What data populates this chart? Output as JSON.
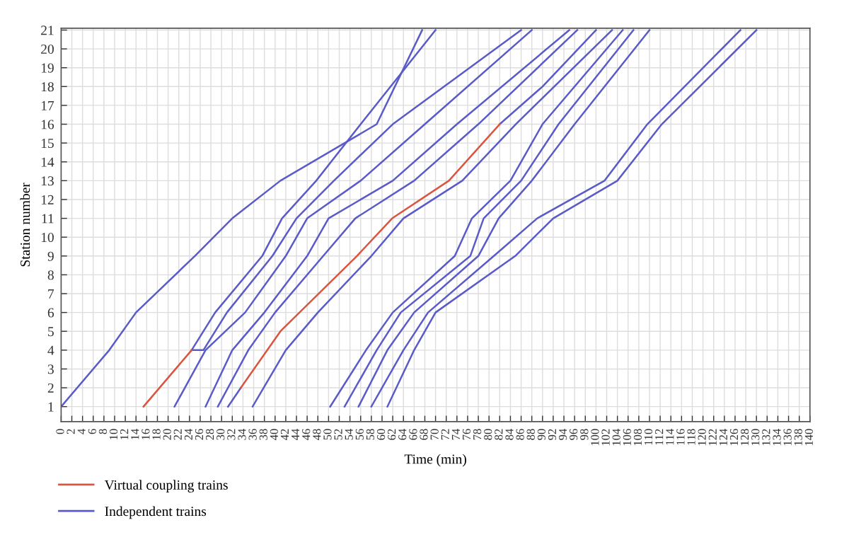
{
  "chart_data": {
    "type": "line",
    "xlabel": "Time (min)",
    "ylabel": "Station number",
    "xlim": [
      0,
      140
    ],
    "xticks": [
      0,
      2,
      4,
      6,
      8,
      10,
      12,
      14,
      16,
      18,
      20,
      22,
      24,
      26,
      28,
      30,
      32,
      34,
      36,
      38,
      40,
      42,
      44,
      46,
      48,
      50,
      52,
      54,
      56,
      58,
      60,
      62,
      64,
      66,
      68,
      70,
      72,
      74,
      76,
      78,
      80,
      82,
      84,
      86,
      88,
      90,
      92,
      94,
      96,
      98,
      100,
      102,
      104,
      106,
      108,
      110,
      112,
      114,
      116,
      118,
      120,
      122,
      124,
      126,
      128,
      130,
      132,
      134,
      136,
      138,
      140
    ],
    "ylim": [
      0.2,
      21.1
    ],
    "yticks": [
      1,
      2,
      3,
      4,
      5,
      6,
      7,
      8,
      9,
      10,
      11,
      12,
      13,
      14,
      15,
      16,
      17,
      18,
      19,
      20,
      21
    ],
    "grid": true,
    "legend": "bottom left",
    "marker": "none",
    "line_style": "solid",
    "series": [
      {
        "name": "Independent trains",
        "color": "#5a5ac8",
        "x": [
          0,
          9,
          14,
          25,
          32,
          41,
          59,
          67.5
        ],
        "values": [
          1,
          4,
          6,
          9,
          11,
          13,
          16,
          21
        ]
      },
      {
        "color": "#5a5ac8",
        "x": [
          24.4,
          28.8,
          37.6,
          41.3,
          47.7,
          56,
          70
        ],
        "values": [
          4,
          6,
          9,
          11,
          13,
          16,
          21
        ]
      },
      {
        "color": "#5a5ac8",
        "x": [
          24.4,
          26.6,
          31,
          39.5,
          44,
          51,
          62,
          86
        ],
        "values": [
          4,
          4,
          6,
          9,
          11,
          13,
          16,
          21
        ]
      },
      {
        "color": "#5a5ac8",
        "x": [
          21.2,
          27,
          34.4,
          42,
          46,
          56,
          68,
          88
        ],
        "values": [
          1,
          4,
          6,
          9,
          11,
          13,
          16,
          21
        ]
      },
      {
        "color": "#5a5ac8",
        "x": [
          27,
          32,
          38,
          46,
          50,
          62,
          74,
          95
        ],
        "values": [
          1,
          4,
          6,
          9,
          11,
          13,
          16,
          21
        ]
      },
      {
        "color": "#5a5ac8",
        "x": [
          29.3,
          35,
          40,
          49,
          55,
          66,
          78,
          96.5
        ],
        "values": [
          1,
          4,
          6,
          9,
          11,
          13,
          16,
          21
        ]
      },
      {
        "color": "#5a5ac8",
        "x": [
          31.2,
          33.6
        ],
        "values": [
          1,
          2
        ]
      },
      {
        "color": "#5a5ac8",
        "x": [
          82,
          90,
          100
        ],
        "values": [
          16,
          18,
          21
        ]
      },
      {
        "color": "#5a5ac8",
        "x": [
          35.8,
          42,
          48,
          58,
          64,
          75,
          85,
          103
        ],
        "values": [
          1,
          4,
          6,
          9,
          11,
          13,
          16,
          21
        ]
      },
      {
        "color": "#5a5ac8",
        "x": [
          50.3,
          57,
          62,
          73.6,
          76.8,
          84,
          90,
          105
        ],
        "values": [
          1,
          4,
          6,
          9,
          11,
          13,
          16,
          21
        ]
      },
      {
        "color": "#5a5ac8",
        "x": [
          53,
          59,
          63.5,
          76.5,
          79,
          86,
          93,
          107
        ],
        "values": [
          1,
          4,
          6,
          9,
          11,
          13,
          16,
          21
        ]
      },
      {
        "color": "#5a5ac8",
        "x": [
          55.6,
          61,
          66,
          78,
          81.8,
          88,
          96,
          110
        ],
        "values": [
          1,
          4,
          6,
          9,
          11,
          13,
          16,
          21
        ]
      },
      {
        "color": "#5a5ac8",
        "x": [
          58,
          64,
          68.6,
          80.9,
          89,
          101.6,
          109.6,
          127
        ],
        "values": [
          1,
          4,
          6,
          9,
          11,
          13,
          16,
          21
        ]
      },
      {
        "color": "#5a5ac8",
        "x": [
          61,
          66,
          70,
          84.9,
          92,
          104,
          112.3,
          130
        ],
        "values": [
          1,
          4,
          6,
          9,
          11,
          13,
          16,
          21
        ]
      },
      {
        "name": "Virtual coupling trains",
        "color": "#d9553f",
        "x": [
          15.4,
          24.4,
          29,
          33.6,
          41,
          55.3,
          61.9,
          72.5,
          82
        ],
        "values": [
          1,
          4,
          null,
          2,
          5,
          9,
          11,
          13,
          16
        ]
      }
    ]
  }
}
